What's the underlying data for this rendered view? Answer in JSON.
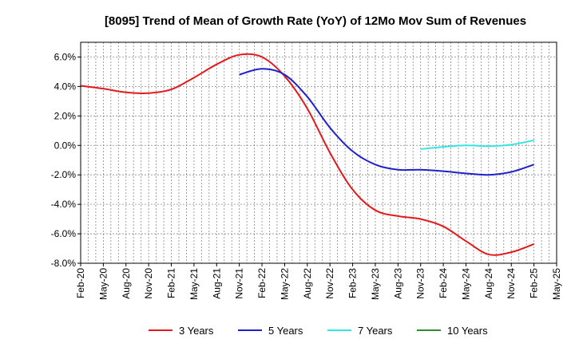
{
  "chart_data": {
    "type": "line",
    "title": "[8095]  Trend of Mean of Growth Rate (YoY) of 12Mo Mov Sum of Revenues",
    "xlabel": "",
    "ylabel": "",
    "ylim": [
      -8.0,
      7.0
    ],
    "yticks": [
      6.0,
      4.0,
      2.0,
      0.0,
      -2.0,
      -4.0,
      -6.0,
      -8.0
    ],
    "ytick_labels": [
      "6.0%",
      "4.0%",
      "2.0%",
      "0.0%",
      "-2.0%",
      "-4.0%",
      "-6.0%",
      "-8.0%"
    ],
    "x_labels": [
      "Feb-20",
      "May-20",
      "Aug-20",
      "Nov-20",
      "Feb-21",
      "May-21",
      "Aug-21",
      "Nov-21",
      "Feb-22",
      "May-22",
      "Aug-22",
      "Nov-22",
      "Feb-23",
      "May-23",
      "Aug-23",
      "Nov-23",
      "Feb-24",
      "May-24",
      "Aug-24",
      "Nov-24",
      "Feb-25",
      "May-25"
    ],
    "grid": true,
    "legend_position": "bottom",
    "series": [
      {
        "name": "3 Years",
        "color": "#e31a1c",
        "points": [
          [
            0,
            4.05
          ],
          [
            1,
            3.85
          ],
          [
            2,
            3.6
          ],
          [
            3,
            3.55
          ],
          [
            4,
            3.8
          ],
          [
            5,
            4.6
          ],
          [
            6,
            5.5
          ],
          [
            7,
            6.15
          ],
          [
            8,
            6.0
          ],
          [
            9,
            4.7
          ],
          [
            10,
            2.5
          ],
          [
            11,
            -0.5
          ],
          [
            12,
            -3.0
          ],
          [
            13,
            -4.4
          ],
          [
            14,
            -4.8
          ],
          [
            15,
            -5.0
          ],
          [
            16,
            -5.5
          ],
          [
            17,
            -6.5
          ],
          [
            18,
            -7.4
          ],
          [
            19,
            -7.25
          ],
          [
            20,
            -6.7
          ]
        ]
      },
      {
        "name": "5 Years",
        "color": "#1f1fcc",
        "points": [
          [
            7,
            4.8
          ],
          [
            8,
            5.2
          ],
          [
            9,
            4.8
          ],
          [
            10,
            3.3
          ],
          [
            11,
            1.2
          ],
          [
            12,
            -0.4
          ],
          [
            13,
            -1.3
          ],
          [
            14,
            -1.65
          ],
          [
            15,
            -1.65
          ],
          [
            16,
            -1.75
          ],
          [
            17,
            -1.9
          ],
          [
            18,
            -2.0
          ],
          [
            19,
            -1.8
          ],
          [
            20,
            -1.3
          ]
        ]
      },
      {
        "name": "7 Years",
        "color": "#33e6e6",
        "points": [
          [
            15,
            -0.25
          ],
          [
            16,
            -0.1
          ],
          [
            17,
            0.0
          ],
          [
            18,
            -0.05
          ],
          [
            19,
            0.05
          ],
          [
            20,
            0.35
          ]
        ]
      },
      {
        "name": "10 Years",
        "color": "#2e8b2e",
        "points": []
      }
    ]
  }
}
